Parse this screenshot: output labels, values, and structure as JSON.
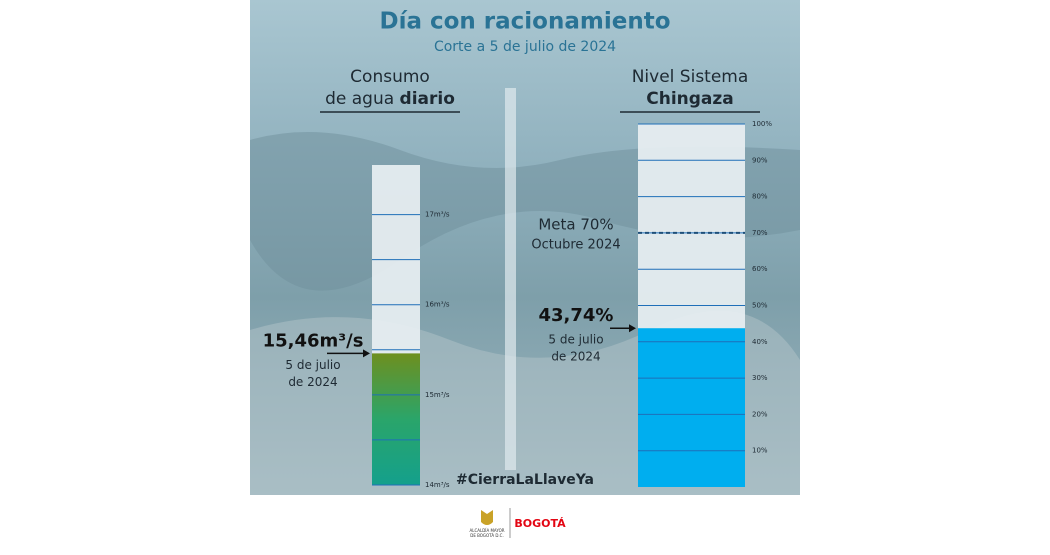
{
  "header": {
    "title": "Día con racionamiento",
    "subtitle": "Corte a 5 de julio de 2024"
  },
  "hashtag": "#CierraLaLlaveYa",
  "footer": {
    "city_hall": [
      "ALCALDÍA MAYOR",
      "DE BOGOTÁ D.C."
    ],
    "brand": "BOGOTÁ"
  },
  "chart_data": [
    {
      "type": "bar",
      "title": [
        "Consumo",
        "de agua "
      ],
      "title_bold": "diario",
      "values": [
        15.46
      ],
      "value_labels": [
        "15,46m³/s"
      ],
      "annotation": [
        "5 de julio",
        "de 2024"
      ],
      "ylim": [
        14,
        17.55
      ],
      "yticks": [
        {
          "value": 14,
          "label": "14m³/s"
        },
        {
          "value": 15,
          "label": "15m³/s"
        },
        {
          "value": 16,
          "label": "16m³/s"
        },
        {
          "value": 17,
          "label": "17m³/s"
        }
      ],
      "minor_yticks": [
        14.5,
        15.5,
        16.5
      ],
      "colors": [
        "#6e8f1f",
        "#2aa56a",
        "#14a08c"
      ]
    },
    {
      "type": "bar",
      "title": [
        "Nivel Sistema"
      ],
      "title_bold": "Chingaza",
      "values": [
        43.74
      ],
      "value_labels": [
        "43,74%"
      ],
      "annotation": [
        "5 de julio",
        "de 2024"
      ],
      "target": 70,
      "target_label": [
        "Meta 70%",
        "Octubre 2024"
      ],
      "ylim": [
        0,
        100
      ],
      "yticks": [
        {
          "value": 10,
          "label": "10%"
        },
        {
          "value": 20,
          "label": "20%"
        },
        {
          "value": 30,
          "label": "30%"
        },
        {
          "value": 40,
          "label": "40%"
        },
        {
          "value": 50,
          "label": "50%"
        },
        {
          "value": 60,
          "label": "60%"
        },
        {
          "value": 70,
          "label": "70%"
        },
        {
          "value": 80,
          "label": "80%"
        },
        {
          "value": 90,
          "label": "90%"
        },
        {
          "value": 100,
          "label": "100%"
        }
      ],
      "colors": [
        "#00aeef"
      ]
    }
  ]
}
